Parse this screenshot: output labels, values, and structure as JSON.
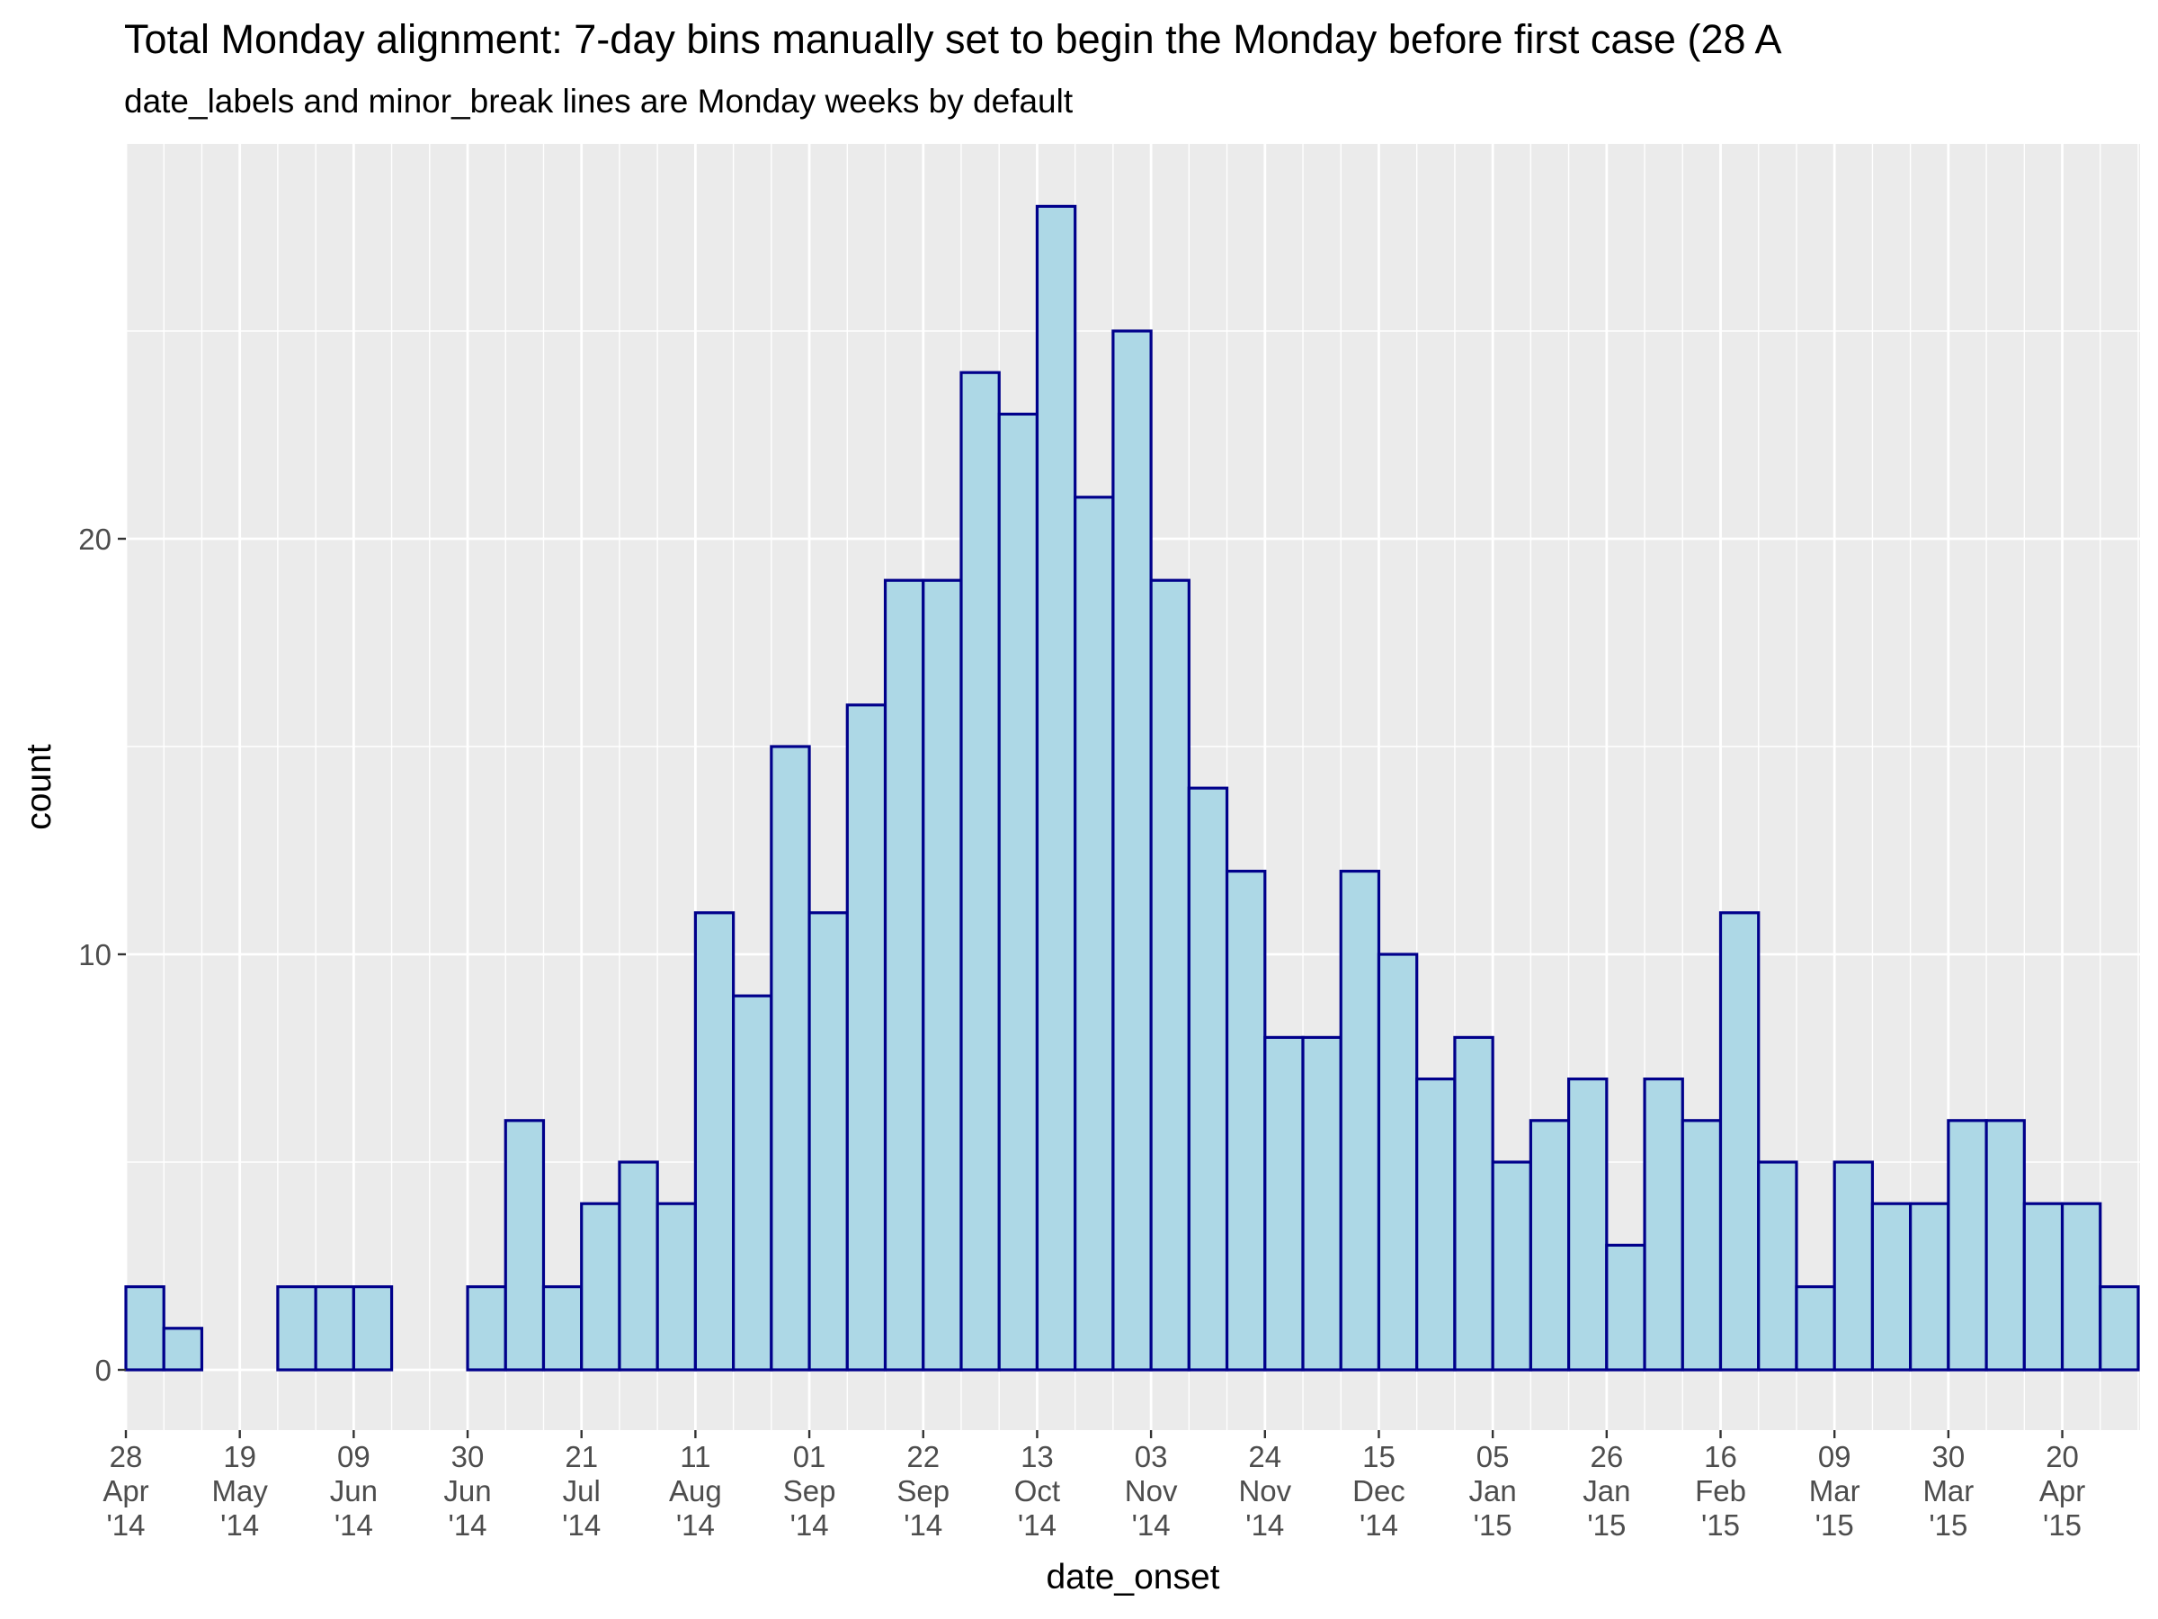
{
  "chart_data": {
    "type": "bar",
    "title": "Total Monday alignment: 7-day bins manually set to begin the Monday before first case (28 A",
    "subtitle": "date_labels and minor_break lines are Monday weeks by default",
    "xlabel": "date_onset",
    "ylabel": "count",
    "bin_width_days": 7,
    "ylim": [
      0,
      27
    ],
    "y_ticks": [
      0,
      10,
      20
    ],
    "x_range": [
      "2014-04-28",
      "2015-05-04"
    ],
    "bins": [
      {
        "start": "2014-04-28",
        "count": 2
      },
      {
        "start": "2014-05-05",
        "count": 1
      },
      {
        "start": "2014-05-12",
        "count": 0
      },
      {
        "start": "2014-05-19",
        "count": 0
      },
      {
        "start": "2014-05-26",
        "count": 2
      },
      {
        "start": "2014-06-02",
        "count": 2
      },
      {
        "start": "2014-06-09",
        "count": 2
      },
      {
        "start": "2014-06-16",
        "count": 0
      },
      {
        "start": "2014-06-23",
        "count": 0
      },
      {
        "start": "2014-06-30",
        "count": 2
      },
      {
        "start": "2014-07-07",
        "count": 6
      },
      {
        "start": "2014-07-14",
        "count": 2
      },
      {
        "start": "2014-07-21",
        "count": 4
      },
      {
        "start": "2014-07-28",
        "count": 5
      },
      {
        "start": "2014-08-04",
        "count": 4
      },
      {
        "start": "2014-08-11",
        "count": 11
      },
      {
        "start": "2014-08-18",
        "count": 9
      },
      {
        "start": "2014-08-25",
        "count": 15
      },
      {
        "start": "2014-09-01",
        "count": 11
      },
      {
        "start": "2014-09-08",
        "count": 16
      },
      {
        "start": "2014-09-15",
        "count": 19
      },
      {
        "start": "2014-09-22",
        "count": 19
      },
      {
        "start": "2014-09-29",
        "count": 24
      },
      {
        "start": "2014-10-06",
        "count": 23
      },
      {
        "start": "2014-10-13",
        "count": 28
      },
      {
        "start": "2014-10-20",
        "count": 21
      },
      {
        "start": "2014-10-27",
        "count": 25
      },
      {
        "start": "2014-11-03",
        "count": 19
      },
      {
        "start": "2014-11-10",
        "count": 14
      },
      {
        "start": "2014-11-17",
        "count": 12
      },
      {
        "start": "2014-11-24",
        "count": 8
      },
      {
        "start": "2014-12-01",
        "count": 8
      },
      {
        "start": "2014-12-08",
        "count": 12
      },
      {
        "start": "2014-12-15",
        "count": 10
      },
      {
        "start": "2014-12-22",
        "count": 7
      },
      {
        "start": "2014-12-29",
        "count": 8
      },
      {
        "start": "2015-01-05",
        "count": 5
      },
      {
        "start": "2015-01-12",
        "count": 6
      },
      {
        "start": "2015-01-19",
        "count": 7
      },
      {
        "start": "2015-01-26",
        "count": 3
      },
      {
        "start": "2015-02-02",
        "count": 7
      },
      {
        "start": "2015-02-09",
        "count": 6
      },
      {
        "start": "2015-02-16",
        "count": 11
      },
      {
        "start": "2015-02-23",
        "count": 5
      },
      {
        "start": "2015-03-02",
        "count": 2
      },
      {
        "start": "2015-03-09",
        "count": 5
      },
      {
        "start": "2015-03-16",
        "count": 4
      },
      {
        "start": "2015-03-23",
        "count": 4
      },
      {
        "start": "2015-03-30",
        "count": 6
      },
      {
        "start": "2015-04-06",
        "count": 6
      },
      {
        "start": "2015-04-13",
        "count": 4
      },
      {
        "start": "2015-04-20",
        "count": 4
      },
      {
        "start": "2015-04-27",
        "count": 2
      }
    ],
    "x_ticks": [
      {
        "date": "2014-04-28",
        "day": "28",
        "month": "Apr",
        "year": "'14"
      },
      {
        "date": "2014-05-19",
        "day": "19",
        "month": "May",
        "year": "'14"
      },
      {
        "date": "2014-06-09",
        "day": "09",
        "month": "Jun",
        "year": "'14"
      },
      {
        "date": "2014-06-30",
        "day": "30",
        "month": "Jun",
        "year": "'14"
      },
      {
        "date": "2014-07-21",
        "day": "21",
        "month": "Jul",
        "year": "'14"
      },
      {
        "date": "2014-08-11",
        "day": "11",
        "month": "Aug",
        "year": "'14"
      },
      {
        "date": "2014-09-01",
        "day": "01",
        "month": "Sep",
        "year": "'14"
      },
      {
        "date": "2014-09-22",
        "day": "22",
        "month": "Sep",
        "year": "'14"
      },
      {
        "date": "2014-10-13",
        "day": "13",
        "month": "Oct",
        "year": "'14"
      },
      {
        "date": "2014-11-03",
        "day": "03",
        "month": "Nov",
        "year": "'14"
      },
      {
        "date": "2014-11-24",
        "day": "24",
        "month": "Nov",
        "year": "'14"
      },
      {
        "date": "2014-12-15",
        "day": "15",
        "month": "Dec",
        "year": "'14"
      },
      {
        "date": "2015-01-05",
        "day": "05",
        "month": "Jan",
        "year": "'15"
      },
      {
        "date": "2015-01-26",
        "day": "26",
        "month": "Jan",
        "year": "'15"
      },
      {
        "date": "2015-02-16",
        "day": "16",
        "month": "Feb",
        "year": "'15"
      },
      {
        "date": "2015-03-09",
        "day": "09",
        "month": "Mar",
        "year": "'15"
      },
      {
        "date": "2015-03-30",
        "day": "30",
        "month": "Mar",
        "year": "'15"
      },
      {
        "date": "2015-04-20",
        "day": "20",
        "month": "Apr",
        "year": "'15"
      }
    ],
    "minor_grid": "weekly (Mondays)",
    "grid": true,
    "colors": {
      "bar_fill": "#add8e6",
      "bar_outline": "#00008b",
      "panel_background": "#ebebeb",
      "grid_line": "#ffffff",
      "tick_text": "#4d4d4d"
    }
  }
}
